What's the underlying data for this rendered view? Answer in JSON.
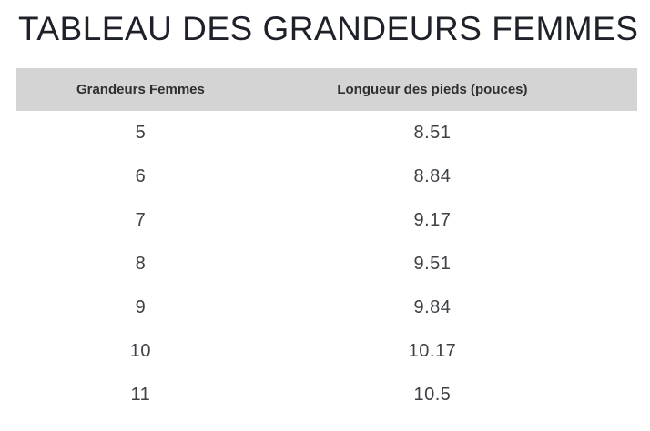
{
  "title": "TABLEAU DES GRANDEURS FEMMES",
  "colors": {
    "page_background": "#ffffff",
    "header_background": "#d4d4d4",
    "header_text": "#2d2f31",
    "body_text": "#3e4145",
    "title_text": "#1e2129"
  },
  "table": {
    "columns": [
      "Grandeurs Femmes",
      "Longueur des pieds (pouces)"
    ],
    "rows": [
      {
        "size": "5",
        "length": "8.51"
      },
      {
        "size": "6",
        "length": "8.84"
      },
      {
        "size": "7",
        "length": "9.17"
      },
      {
        "size": "8",
        "length": "9.51"
      },
      {
        "size": "9",
        "length": "9.84"
      },
      {
        "size": "10",
        "length": "10.17"
      },
      {
        "size": "11",
        "length": "10.5"
      }
    ]
  },
  "chart_data": {
    "type": "table",
    "title": "TABLEAU DES GRANDEURS FEMMES",
    "columns": [
      "Grandeurs Femmes",
      "Longueur des pieds (pouces)"
    ],
    "rows": [
      [
        5,
        8.51
      ],
      [
        6,
        8.84
      ],
      [
        7,
        9.17
      ],
      [
        8,
        9.51
      ],
      [
        9,
        9.84
      ],
      [
        10,
        10.17
      ],
      [
        11,
        10.5
      ]
    ]
  }
}
